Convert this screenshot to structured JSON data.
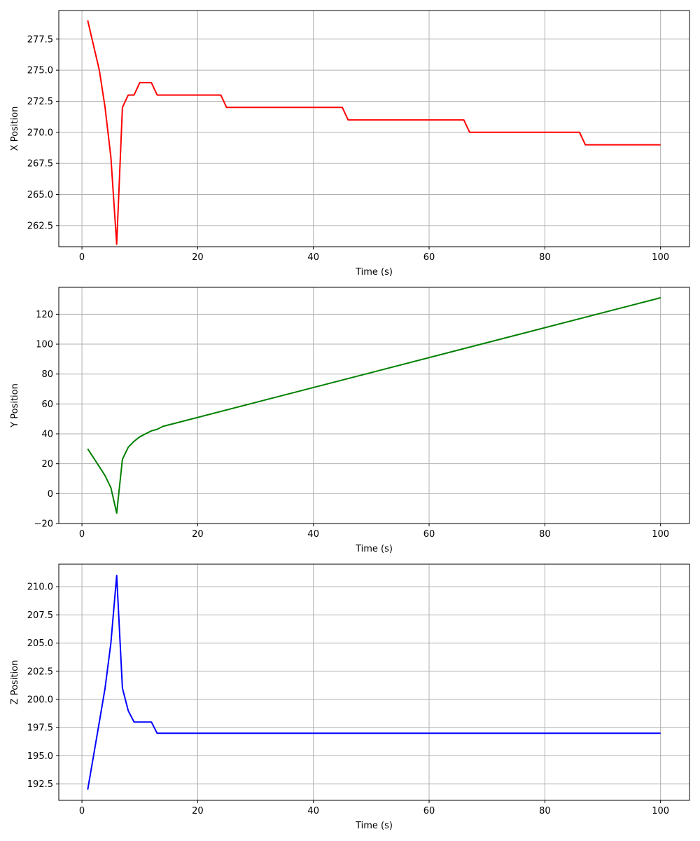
{
  "chart_data": [
    {
      "type": "line",
      "xlabel": "Time (s)",
      "ylabel": "X Position",
      "xlim": [
        -4,
        105
      ],
      "ylim": [
        260.8,
        279.8
      ],
      "xticks": [
        0,
        20,
        40,
        60,
        80,
        100
      ],
      "xtick_labels": [
        "0",
        "20",
        "40",
        "60",
        "80",
        "100"
      ],
      "yticks": [
        262.5,
        265.0,
        267.5,
        270.0,
        272.5,
        275.0,
        277.5
      ],
      "ytick_labels": [
        "262.5",
        "265.0",
        "267.5",
        "270.0",
        "272.5",
        "275.0",
        "277.5"
      ],
      "grid": true,
      "color": "#ff0000",
      "series": [
        {
          "x": [
            1,
            3,
            4,
            5,
            6,
            7,
            8,
            9,
            10,
            12,
            13,
            24,
            25,
            45,
            46,
            66,
            67,
            86,
            87,
            100
          ],
          "y": [
            279,
            275,
            272,
            268,
            261,
            272,
            273,
            273,
            274,
            274,
            273,
            273,
            272,
            272,
            271,
            271,
            270,
            270,
            269,
            269
          ]
        }
      ]
    },
    {
      "type": "line",
      "xlabel": "Time (s)",
      "ylabel": "Y Position",
      "xlim": [
        -4,
        105
      ],
      "ylim": [
        -20,
        138
      ],
      "xticks": [
        0,
        20,
        40,
        60,
        80,
        100
      ],
      "xtick_labels": [
        "0",
        "20",
        "40",
        "60",
        "80",
        "100"
      ],
      "yticks": [
        -20,
        0,
        20,
        40,
        60,
        80,
        100,
        120
      ],
      "ytick_labels": [
        "−20",
        "0",
        "20",
        "40",
        "60",
        "80",
        "100",
        "120"
      ],
      "grid": true,
      "color": "#008000",
      "series": [
        {
          "x": [
            1,
            2,
            3,
            4,
            5,
            6,
            7,
            8,
            9,
            10,
            11,
            12,
            13,
            14,
            100
          ],
          "y": [
            30,
            24,
            18,
            12,
            4,
            -13,
            23,
            31,
            35,
            38,
            40,
            42,
            43,
            45,
            131
          ]
        }
      ]
    },
    {
      "type": "line",
      "xlabel": "Time (s)",
      "ylabel": "Z Position",
      "xlim": [
        -4,
        105
      ],
      "ylim": [
        191.05,
        212.0
      ],
      "xticks": [
        0,
        20,
        40,
        60,
        80,
        100
      ],
      "xtick_labels": [
        "0",
        "20",
        "40",
        "60",
        "80",
        "100"
      ],
      "yticks": [
        192.5,
        195.0,
        197.5,
        200.0,
        202.5,
        205.0,
        207.5,
        210.0
      ],
      "ytick_labels": [
        "192.5",
        "195.0",
        "197.5",
        "200.0",
        "202.5",
        "205.0",
        "207.5",
        "210.0"
      ],
      "grid": true,
      "color": "#0000ff",
      "series": [
        {
          "x": [
            1,
            2,
            3,
            4,
            5,
            6,
            7,
            8,
            9,
            10,
            11,
            12,
            13,
            100
          ],
          "y": [
            192,
            195,
            198,
            201,
            205,
            211,
            201,
            199,
            198,
            198,
            198,
            198,
            197,
            197
          ]
        }
      ]
    }
  ]
}
